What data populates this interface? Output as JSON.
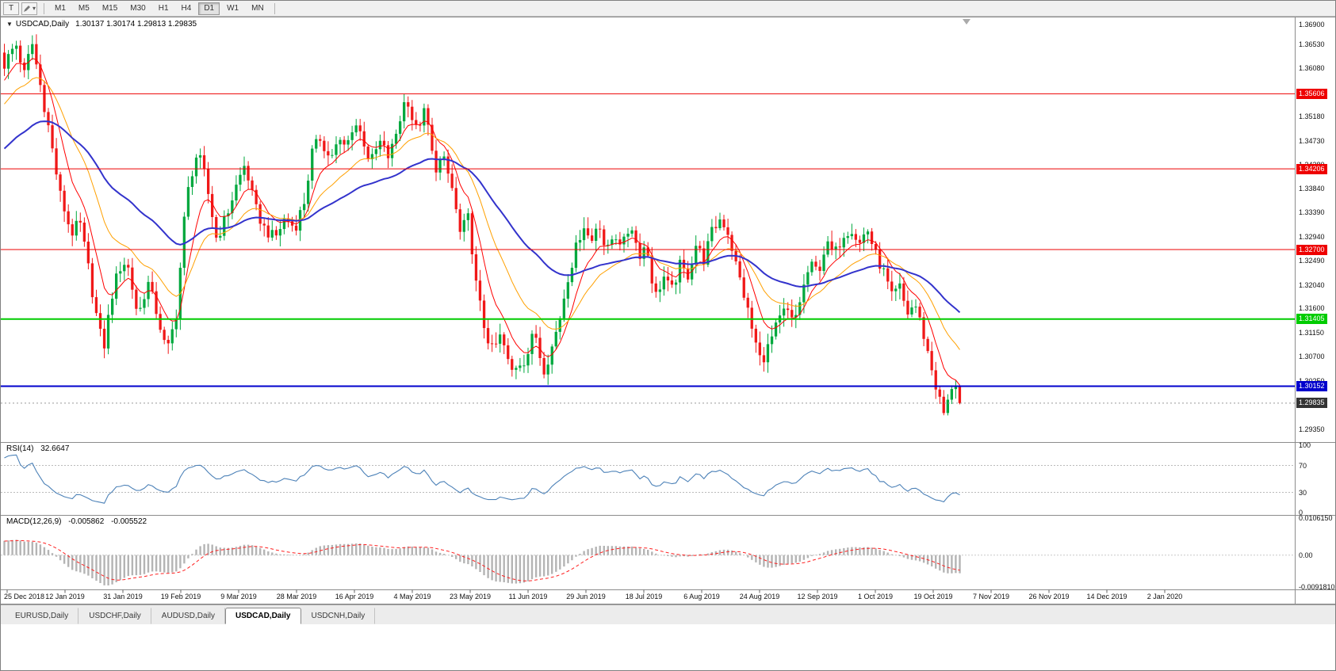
{
  "toolbar": {
    "text_tool_label": "T",
    "draw_tool_arrow": "▾",
    "timeframes": [
      {
        "label": "M1",
        "active": false
      },
      {
        "label": "M5",
        "active": false
      },
      {
        "label": "M15",
        "active": false
      },
      {
        "label": "M30",
        "active": false
      },
      {
        "label": "H1",
        "active": false
      },
      {
        "label": "H4",
        "active": false
      },
      {
        "label": "D1",
        "active": true
      },
      {
        "label": "W1",
        "active": false
      },
      {
        "label": "MN",
        "active": false
      }
    ]
  },
  "chart_header": {
    "dropdown_arrow": "▼",
    "symbol": "USDCAD,Daily",
    "ohlc": "1.30137 1.30174 1.29813 1.29835"
  },
  "indicators": {
    "rsi": {
      "title": "RSI(14)",
      "value": "32.6647",
      "axis_ticks": [
        {
          "label": "100",
          "value": 100
        },
        {
          "label": "70",
          "value": 70
        },
        {
          "label": "30",
          "value": 30
        },
        {
          "label": "0",
          "value": 0
        }
      ],
      "level_lines": [
        70,
        30
      ],
      "line_color": "#4d82b8"
    },
    "macd": {
      "title": "MACD(12,26,9)",
      "main_value": "-0.005862",
      "signal_value": "-0.005522",
      "axis_ticks": [
        {
          "label": "0.0106150",
          "value": 0.010615
        },
        {
          "label": "0.00",
          "value": 0
        },
        {
          "label": "-0.0091810",
          "value": -0.009181
        }
      ],
      "histogram_color": "#b4b4b4",
      "signal_color": "#ff2020"
    }
  },
  "hlines": [
    {
      "label": "1.35606",
      "value": 1.35606,
      "color": "#ee0000",
      "width": 1
    },
    {
      "label": "1.34206",
      "value": 1.34206,
      "color": "#ee0000",
      "width": 1
    },
    {
      "label": "1.32700",
      "value": 1.327,
      "color": "#ee0000",
      "width": 1
    },
    {
      "label": "1.31405",
      "value": 1.31405,
      "color": "#00cc00",
      "width": 2
    },
    {
      "label": "1.30152",
      "value": 1.30152,
      "color": "#0000cc",
      "width": 2
    }
  ],
  "current_price": {
    "label": "1.29835",
    "value": 1.29835,
    "tag_color": "#333333"
  },
  "tabs": [
    {
      "label": "EURUSD,Daily",
      "active": false
    },
    {
      "label": "USDCHF,Daily",
      "active": false
    },
    {
      "label": "AUDUSD,Daily",
      "active": false
    },
    {
      "label": "USDCAD,Daily",
      "active": true
    },
    {
      "label": "USDCNH,Daily",
      "active": false
    }
  ],
  "chart_data": {
    "type": "candlestick",
    "symbol": "USDCAD",
    "timeframe": "Daily",
    "ohlc_current": {
      "open": 1.30137,
      "high": 1.30174,
      "low": 1.29813,
      "close": 1.29835
    },
    "ylim": [
      1.2911,
      1.3703
    ],
    "y_ticks": [
      "1.36900",
      "1.36530",
      "1.36080",
      "1.35630",
      "1.35180",
      "1.34730",
      "1.34280",
      "1.33840",
      "1.33390",
      "1.32940",
      "1.32490",
      "1.32040",
      "1.31600",
      "1.31150",
      "1.30700",
      "1.30250",
      "1.29800",
      "1.29350"
    ],
    "x_labels": [
      "25 Dec 2018",
      "12 Jan 2019",
      "31 Jan 2019",
      "19 Feb 2019",
      "9 Mar 2019",
      "28 Mar 2019",
      "16 Apr 2019",
      "4 May 2019",
      "23 May 2019",
      "11 Jun 2019",
      "29 Jun 2019",
      "18 Jul 2019",
      "6 Aug 2019",
      "24 Aug 2019",
      "12 Sep 2019",
      "1 Oct 2019",
      "19 Oct 2019",
      "7 Nov 2019",
      "26 Nov 2019",
      "14 Dec 2019",
      "2 Jan 2020"
    ],
    "candle_count": 240,
    "colors": {
      "up": "#00a83e",
      "down": "#f01818"
    },
    "moving_averages": [
      {
        "period": 8,
        "color": "#ff0000",
        "width": 1
      },
      {
        "period": 20,
        "color": "#ffa000",
        "width": 1
      },
      {
        "period": 50,
        "color": "#3333cc",
        "width": 2
      }
    ],
    "price_path": [
      [
        0.0,
        1.3615
      ],
      [
        0.012,
        1.3655
      ],
      [
        0.022,
        1.359
      ],
      [
        0.028,
        1.3665
      ],
      [
        0.046,
        1.35
      ],
      [
        0.058,
        1.3375
      ],
      [
        0.07,
        1.33
      ],
      [
        0.079,
        1.332
      ],
      [
        0.087,
        1.3245
      ],
      [
        0.098,
        1.313
      ],
      [
        0.104,
        1.3085
      ],
      [
        0.112,
        1.318
      ],
      [
        0.12,
        1.3235
      ],
      [
        0.128,
        1.325
      ],
      [
        0.14,
        1.3145
      ],
      [
        0.15,
        1.321
      ],
      [
        0.16,
        1.315
      ],
      [
        0.17,
        1.3075
      ],
      [
        0.18,
        1.315
      ],
      [
        0.19,
        1.336
      ],
      [
        0.2,
        1.3445
      ],
      [
        0.207,
        1.343
      ],
      [
        0.215,
        1.336
      ],
      [
        0.222,
        1.329
      ],
      [
        0.232,
        1.333
      ],
      [
        0.243,
        1.339
      ],
      [
        0.252,
        1.343
      ],
      [
        0.262,
        1.335
      ],
      [
        0.272,
        1.331
      ],
      [
        0.283,
        1.329
      ],
      [
        0.294,
        1.333
      ],
      [
        0.304,
        1.331
      ],
      [
        0.314,
        1.336
      ],
      [
        0.322,
        1.345
      ],
      [
        0.331,
        1.348
      ],
      [
        0.34,
        1.344
      ],
      [
        0.35,
        1.347
      ],
      [
        0.358,
        1.346
      ],
      [
        0.366,
        1.351
      ],
      [
        0.375,
        1.348
      ],
      [
        0.383,
        1.343
      ],
      [
        0.393,
        1.347
      ],
      [
        0.403,
        1.344
      ],
      [
        0.412,
        1.35
      ],
      [
        0.421,
        1.356
      ],
      [
        0.43,
        1.349
      ],
      [
        0.441,
        1.353
      ],
      [
        0.45,
        1.342
      ],
      [
        0.459,
        1.344
      ],
      [
        0.468,
        1.339
      ],
      [
        0.477,
        1.33
      ],
      [
        0.486,
        1.333
      ],
      [
        0.494,
        1.32
      ],
      [
        0.503,
        1.312
      ],
      [
        0.511,
        1.308
      ],
      [
        0.52,
        1.311
      ],
      [
        0.53,
        1.304
      ],
      [
        0.538,
        1.306
      ],
      [
        0.546,
        1.3065
      ],
      [
        0.555,
        1.312
      ],
      [
        0.564,
        1.3045
      ],
      [
        0.572,
        1.308
      ],
      [
        0.581,
        1.314
      ],
      [
        0.59,
        1.322
      ],
      [
        0.598,
        1.327
      ],
      [
        0.606,
        1.332
      ],
      [
        0.614,
        1.328
      ],
      [
        0.622,
        1.333
      ],
      [
        0.63,
        1.326
      ],
      [
        0.638,
        1.33
      ],
      [
        0.648,
        1.328
      ],
      [
        0.656,
        1.332
      ],
      [
        0.664,
        1.326
      ],
      [
        0.672,
        1.328
      ],
      [
        0.681,
        1.318
      ],
      [
        0.69,
        1.322
      ],
      [
        0.698,
        1.319
      ],
      [
        0.707,
        1.324
      ],
      [
        0.715,
        1.322
      ],
      [
        0.724,
        1.328
      ],
      [
        0.732,
        1.325
      ],
      [
        0.74,
        1.33
      ],
      [
        0.75,
        1.333
      ],
      [
        0.758,
        1.33
      ],
      [
        0.766,
        1.324
      ],
      [
        0.775,
        1.318
      ],
      [
        0.784,
        1.311
      ],
      [
        0.792,
        1.306
      ],
      [
        0.8,
        1.309
      ],
      [
        0.809,
        1.313
      ],
      [
        0.818,
        1.316
      ],
      [
        0.826,
        1.313
      ],
      [
        0.835,
        1.319
      ],
      [
        0.843,
        1.324
      ],
      [
        0.852,
        1.323
      ],
      [
        0.86,
        1.328
      ],
      [
        0.869,
        1.326
      ],
      [
        0.878,
        1.33
      ],
      [
        0.887,
        1.331
      ],
      [
        0.895,
        1.328
      ],
      [
        0.903,
        1.331
      ],
      [
        0.912,
        1.326
      ],
      [
        0.92,
        1.323
      ],
      [
        0.929,
        1.318
      ],
      [
        0.937,
        1.32
      ],
      [
        0.945,
        1.315
      ],
      [
        0.953,
        1.317
      ],
      [
        0.961,
        1.312
      ],
      [
        0.969,
        1.306
      ],
      [
        0.977,
        1.3
      ],
      [
        0.984,
        1.296
      ],
      [
        0.99,
        1.301
      ],
      [
        0.996,
        1.30137
      ],
      [
        1.0,
        1.29835
      ]
    ]
  }
}
